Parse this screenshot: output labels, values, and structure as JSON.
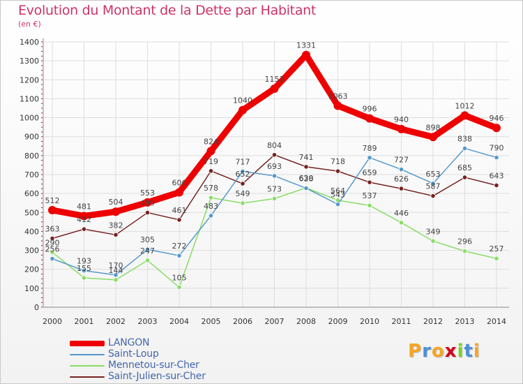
{
  "title": "Evolution du Montant de la Dette par Habitant",
  "unit_label": "(en €)",
  "logo": {
    "letters": [
      "P",
      "r",
      "o",
      "x",
      "i",
      "t",
      "i"
    ],
    "colors": [
      "#f5a623",
      "#4a90d9",
      "#f5a623",
      "#d0021b",
      "#7ed321",
      "#4a90d9",
      "#f5a623"
    ]
  },
  "chart_data": {
    "type": "line",
    "x": [
      "2000",
      "2001",
      "2002",
      "2003",
      "2004",
      "2005",
      "2006",
      "2007",
      "2008",
      "2009",
      "2010",
      "2011",
      "2012",
      "2013",
      "2014"
    ],
    "ylim": [
      0,
      1400
    ],
    "yticks": [
      "0",
      "100",
      "200",
      "300",
      "400",
      "500",
      "600",
      "700",
      "800",
      "900",
      "1000",
      "1100",
      "1200",
      "1300",
      "1400"
    ],
    "grid": true,
    "legend_position": "bottom-left",
    "series": [
      {
        "name": "LANGON",
        "color": "#ee0000",
        "values": [
          512,
          481,
          504,
          553,
          606,
          824,
          1040,
          1153,
          1331,
          1063,
          996,
          940,
          898,
          1012,
          946
        ],
        "labels": [
          "512",
          "481",
          "504",
          "553",
          "606",
          "824",
          "1040",
          "1153",
          "1331",
          "1063",
          "996",
          "940",
          "898",
          "1012",
          "946"
        ]
      },
      {
        "name": "Saint-Loup",
        "color": "#5599cc",
        "values": [
          256,
          193,
          170,
          305,
          272,
          483,
          717,
          693,
          628,
          543,
          789,
          727,
          653,
          838,
          790
        ],
        "labels": [
          "256",
          "193",
          "170",
          "305",
          "272",
          "483",
          "717",
          "693",
          "628",
          "543",
          "789",
          "727",
          "653",
          "838",
          "790"
        ]
      },
      {
        "name": "Mennetou-sur-Cher",
        "color": "#88dd66",
        "values": [
          290,
          155,
          144,
          247,
          105,
          578,
          549,
          573,
          630,
          564,
          537,
          446,
          349,
          296,
          257
        ],
        "labels": [
          "290",
          "155",
          "144",
          "247",
          "105",
          "578",
          "549",
          "573",
          "630",
          "564",
          "537",
          "446",
          "349",
          "296",
          "257"
        ]
      },
      {
        "name": "Saint-Julien-sur-Cher",
        "color": "#772222",
        "values": [
          363,
          412,
          382,
          499,
          461,
          719,
          652,
          804,
          741,
          718,
          659,
          626,
          587,
          685,
          643
        ],
        "labels": [
          "363",
          "412",
          "382",
          "499",
          "461",
          "719",
          "652",
          "804",
          "741",
          "718",
          "659",
          "626",
          "587",
          "685",
          "643"
        ]
      }
    ]
  }
}
